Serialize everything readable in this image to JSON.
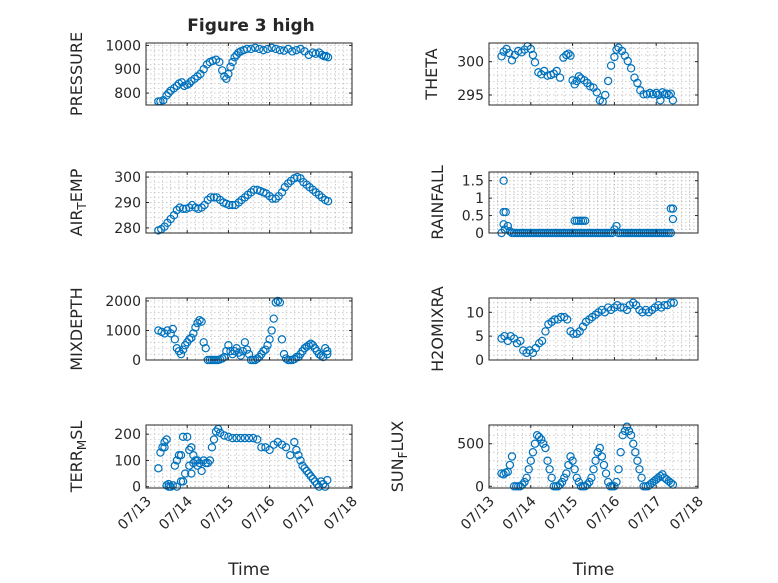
{
  "figure": {
    "title": "Figure 3 high"
  },
  "chart_data": [
    {
      "id": "pressure",
      "type": "scatter",
      "ylabel": "PRESSURE",
      "xlim": [
        0,
        5
      ],
      "ylim": [
        750,
        1010
      ],
      "yticks": [
        800,
        900,
        1000
      ],
      "xticks": [
        0,
        1,
        2,
        3,
        4,
        5
      ],
      "xticklabels": [],
      "xlabel": "",
      "grid": true,
      "title_ref": "figure.title",
      "x": [
        0.3,
        0.35,
        0.42,
        0.5,
        0.55,
        0.6,
        0.68,
        0.75,
        0.8,
        0.87,
        0.93,
        1.0,
        1.05,
        1.1,
        1.18,
        1.25,
        1.32,
        1.4,
        1.48,
        1.55,
        1.62,
        1.7,
        1.78,
        1.85,
        1.9,
        1.95,
        2.0,
        2.05,
        2.1,
        2.15,
        2.2,
        2.25,
        2.3,
        2.37,
        2.45,
        2.55,
        2.65,
        2.75,
        2.85,
        2.95,
        3.05,
        3.15,
        3.25,
        3.35,
        3.45,
        3.55,
        3.65,
        3.75,
        3.85,
        3.95,
        4.05,
        4.12,
        4.2,
        4.27,
        4.32,
        4.37,
        4.42
      ],
      "y": [
        765,
        765,
        770,
        790,
        800,
        810,
        820,
        830,
        840,
        845,
        830,
        835,
        840,
        850,
        860,
        870,
        880,
        900,
        920,
        930,
        935,
        940,
        930,
        895,
        870,
        860,
        880,
        910,
        930,
        950,
        960,
        970,
        975,
        980,
        985,
        985,
        990,
        985,
        980,
        985,
        990,
        985,
        980,
        978,
        985,
        975,
        980,
        985,
        975,
        960,
        970,
        965,
        970,
        960,
        955,
        955,
        950
      ]
    },
    {
      "id": "theta",
      "type": "scatter",
      "ylabel": "THETA",
      "xlim": [
        0,
        5
      ],
      "ylim": [
        293.5,
        302.8
      ],
      "yticks": [
        295,
        300
      ],
      "xticks": [
        0,
        1,
        2,
        3,
        4,
        5
      ],
      "xticklabels": [],
      "xlabel": "",
      "grid": true,
      "x": [
        0.3,
        0.35,
        0.42,
        0.48,
        0.55,
        0.62,
        0.7,
        0.78,
        0.85,
        0.92,
        1.0,
        1.05,
        1.1,
        1.18,
        1.25,
        1.32,
        1.4,
        1.48,
        1.55,
        1.62,
        1.7,
        1.78,
        1.85,
        1.9,
        1.95,
        2.0,
        2.05,
        2.1,
        2.15,
        2.2,
        2.28,
        2.35,
        2.42,
        2.5,
        2.58,
        2.65,
        2.72,
        2.78,
        2.85,
        2.92,
        3.0,
        3.05,
        3.1,
        3.18,
        3.25,
        3.32,
        3.4,
        3.48,
        3.55,
        3.62,
        3.7,
        3.78,
        3.85,
        3.92,
        4.0,
        4.05,
        4.1,
        4.15,
        4.2,
        4.25,
        4.3,
        4.35,
        4.4
      ],
      "y": [
        300.8,
        301.5,
        301.9,
        301.3,
        300.2,
        301.0,
        301.6,
        301.4,
        301.8,
        302.3,
        301.9,
        301.0,
        299.9,
        298.4,
        298.1,
        298.6,
        297.9,
        298.0,
        298.2,
        298.6,
        297.6,
        300.6,
        301.0,
        301.2,
        300.9,
        297.2,
        296.6,
        297.1,
        297.8,
        297.5,
        297.2,
        296.8,
        296.3,
        296.1,
        295.4,
        294.2,
        294.0,
        295.0,
        297.1,
        299.4,
        300.7,
        301.8,
        302.1,
        301.6,
        300.9,
        300.1,
        299.0,
        297.6,
        296.8,
        295.7,
        295.1,
        295.1,
        295.3,
        295.1,
        295.3,
        295.0,
        294.2,
        295.4,
        295.1,
        295.2,
        295.0,
        295.2,
        294.2
      ]
    },
    {
      "id": "air_temp",
      "type": "scatter",
      "ylabel": "AIR_TEMP",
      "ylabel_parts": [
        "AIR",
        "T",
        "EMP"
      ],
      "xlim": [
        0,
        5
      ],
      "ylim": [
        278,
        302
      ],
      "yticks": [
        280,
        290,
        300
      ],
      "xticks": [
        0,
        1,
        2,
        3,
        4,
        5
      ],
      "xticklabels": [],
      "xlabel": "",
      "grid": true,
      "x": [
        0.3,
        0.37,
        0.45,
        0.52,
        0.6,
        0.68,
        0.75,
        0.82,
        0.9,
        0.97,
        1.05,
        1.12,
        1.2,
        1.27,
        1.35,
        1.42,
        1.5,
        1.57,
        1.65,
        1.72,
        1.8,
        1.88,
        1.95,
        2.02,
        2.1,
        2.17,
        2.25,
        2.32,
        2.4,
        2.47,
        2.55,
        2.62,
        2.7,
        2.77,
        2.85,
        2.92,
        3.0,
        3.07,
        3.15,
        3.22,
        3.3,
        3.37,
        3.45,
        3.52,
        3.6,
        3.67,
        3.75,
        3.82,
        3.9,
        3.97,
        4.05,
        4.12,
        4.2,
        4.27,
        4.35,
        4.42
      ],
      "y": [
        279,
        279.5,
        280.5,
        282,
        283.5,
        285,
        287,
        288,
        287.5,
        287.5,
        288,
        289,
        288,
        287.5,
        288,
        289,
        291,
        292,
        292,
        292,
        291,
        290,
        289.5,
        289,
        289,
        289,
        290,
        291,
        292,
        293,
        294,
        295,
        295,
        294.5,
        294,
        293.5,
        292.5,
        291.5,
        291.5,
        292.5,
        294,
        296,
        297.5,
        298.5,
        299.5,
        300,
        299.5,
        298,
        297,
        296,
        295,
        294,
        293,
        292,
        291,
        290.5
      ]
    },
    {
      "id": "rainfall",
      "type": "scatter",
      "ylabel": "RAINFALL",
      "xlim": [
        0,
        5
      ],
      "ylim": [
        0,
        1.75
      ],
      "yticks": [
        0,
        0.5,
        1,
        1.5
      ],
      "yticklabels": [
        "0",
        "0.5",
        "1",
        "1.5"
      ],
      "xticks": [
        0,
        1,
        2,
        3,
        4,
        5
      ],
      "xticklabels": [],
      "xlabel": "",
      "grid": true,
      "x": [
        0.3,
        0.35,
        0.4,
        0.45,
        0.5,
        0.55,
        0.6,
        0.65,
        0.7,
        0.75,
        0.8,
        0.85,
        0.9,
        0.95,
        1.0,
        1.05,
        1.1,
        1.15,
        1.2,
        1.25,
        1.3,
        1.35,
        1.4,
        1.45,
        1.5,
        1.55,
        1.6,
        1.65,
        1.7,
        1.75,
        1.8,
        1.85,
        1.9,
        1.95,
        2.0,
        2.05,
        2.1,
        2.15,
        2.2,
        2.25,
        2.3,
        2.35,
        2.4,
        2.45,
        2.5,
        2.55,
        2.6,
        2.65,
        2.7,
        2.75,
        2.8,
        2.85,
        2.9,
        2.95,
        3.0,
        3.05,
        3.1,
        3.15,
        3.2,
        3.25,
        3.3,
        3.35,
        3.4,
        3.45,
        3.5,
        3.55,
        3.6,
        3.65,
        3.7,
        3.75,
        3.8,
        3.85,
        3.9,
        3.95,
        4.0,
        4.05,
        4.1,
        4.15,
        4.2,
        4.25,
        4.3,
        4.35,
        4.4,
        4.35,
        4.4,
        0.35,
        0.35,
        0.38,
        2.05,
        2.1,
        2.15,
        2.2,
        2.25,
        2.3
      ],
      "y": [
        0,
        1.5,
        0.6,
        0.2,
        0.05,
        0,
        0,
        0,
        0,
        0,
        0,
        0,
        0,
        0,
        0,
        0,
        0,
        0,
        0,
        0,
        0,
        0,
        0,
        0,
        0,
        0,
        0,
        0,
        0,
        0,
        0,
        0,
        0,
        0,
        0,
        0,
        0,
        0,
        0,
        0,
        0,
        0,
        0,
        0,
        0,
        0,
        0,
        0,
        0,
        0,
        0,
        0,
        0,
        0,
        0.1,
        0.2,
        0,
        0,
        0,
        0,
        0,
        0,
        0,
        0,
        0,
        0,
        0,
        0,
        0,
        0,
        0,
        0,
        0,
        0,
        0,
        0,
        0,
        0,
        0,
        0,
        0,
        0,
        0.4,
        0.7,
        0.7,
        0.6,
        0.25,
        0.1,
        0.35,
        0.35,
        0.35,
        0.35,
        0.35,
        0.35
      ]
    },
    {
      "id": "mixdepth",
      "type": "scatter",
      "ylabel": "MIXDEPTH",
      "xlim": [
        0,
        5
      ],
      "ylim": [
        0,
        2100
      ],
      "yticks": [
        0,
        1000,
        2000
      ],
      "xticks": [
        0,
        1,
        2,
        3,
        4,
        5
      ],
      "xticklabels": [],
      "xlabel": "",
      "grid": true,
      "x": [
        0.3,
        0.38,
        0.45,
        0.52,
        0.6,
        0.65,
        0.7,
        0.75,
        0.8,
        0.85,
        0.9,
        0.95,
        1.0,
        1.05,
        1.1,
        1.15,
        1.2,
        1.25,
        1.3,
        1.35,
        1.4,
        1.45,
        1.5,
        1.55,
        1.6,
        1.65,
        1.7,
        1.75,
        1.8,
        1.85,
        1.9,
        1.95,
        2.0,
        2.05,
        2.1,
        2.15,
        2.2,
        2.25,
        2.3,
        2.35,
        2.4,
        2.45,
        2.5,
        2.55,
        2.6,
        2.65,
        2.7,
        2.75,
        2.8,
        2.85,
        2.9,
        2.95,
        3.0,
        3.05,
        3.1,
        3.15,
        3.2,
        3.25,
        3.3,
        3.35,
        3.4,
        3.45,
        3.5,
        3.55,
        3.6,
        3.65,
        3.7,
        3.75,
        3.8,
        3.85,
        3.9,
        3.95,
        4.0,
        4.05,
        4.1,
        4.15,
        4.2,
        4.25,
        4.3,
        4.35,
        4.4,
        4.4
      ],
      "y": [
        1000,
        950,
        900,
        1000,
        900,
        1050,
        700,
        400,
        300,
        200,
        350,
        500,
        600,
        700,
        750,
        900,
        1100,
        1250,
        1350,
        1300,
        600,
        400,
        0,
        0,
        0,
        0,
        0,
        0,
        20,
        50,
        100,
        300,
        500,
        300,
        200,
        300,
        400,
        250,
        150,
        300,
        600,
        350,
        200,
        0,
        0,
        0,
        50,
        100,
        200,
        300,
        350,
        500,
        700,
        1000,
        1400,
        1950,
        2000,
        1950,
        700,
        200,
        50,
        0,
        0,
        0,
        30,
        100,
        100,
        200,
        300,
        400,
        450,
        500,
        550,
        500,
        400,
        300,
        200,
        150,
        100,
        400,
        300,
        200
      ]
    },
    {
      "id": "h2omixra",
      "type": "scatter",
      "ylabel": "H2OMIXRA",
      "xlim": [
        0,
        5
      ],
      "ylim": [
        0,
        13
      ],
      "yticks": [
        0,
        5,
        10
      ],
      "xticks": [
        0,
        1,
        2,
        3,
        4,
        5
      ],
      "xticklabels": [],
      "xlabel": "",
      "grid": true,
      "x": [
        0.3,
        0.37,
        0.45,
        0.52,
        0.6,
        0.67,
        0.75,
        0.82,
        0.9,
        0.97,
        1.05,
        1.12,
        1.2,
        1.27,
        1.35,
        1.42,
        1.5,
        1.57,
        1.65,
        1.72,
        1.8,
        1.87,
        1.95,
        2.02,
        2.1,
        2.17,
        2.25,
        2.32,
        2.4,
        2.47,
        2.55,
        2.62,
        2.7,
        2.77,
        2.85,
        2.92,
        3.0,
        3.07,
        3.15,
        3.22,
        3.3,
        3.37,
        3.45,
        3.52,
        3.6,
        3.67,
        3.75,
        3.82,
        3.9,
        3.97,
        4.05,
        4.12,
        4.2,
        4.27,
        4.35,
        4.42
      ],
      "y": [
        4.5,
        5,
        4,
        5,
        4.5,
        3.5,
        4,
        2,
        1.5,
        2,
        1.5,
        2.5,
        3.5,
        4,
        6,
        7.5,
        8,
        8.5,
        8.5,
        9,
        9,
        8.5,
        6,
        5.5,
        5.5,
        6,
        7,
        8,
        8.5,
        9,
        9.5,
        10,
        10.5,
        10,
        11,
        10.5,
        11,
        11.5,
        11,
        11,
        10.5,
        11.5,
        12,
        11.5,
        10.5,
        10,
        10.5,
        10,
        10.5,
        11,
        11.5,
        11,
        11.5,
        11.5,
        12,
        12
      ]
    },
    {
      "id": "terr_msl",
      "type": "scatter",
      "ylabel": "TERR_MSL",
      "ylabel_parts": [
        "TERR",
        "M",
        "SL"
      ],
      "xlim": [
        0,
        5
      ],
      "ylim": [
        -5,
        235
      ],
      "yticks": [
        0,
        100,
        200
      ],
      "xticks": [
        0,
        1,
        2,
        3,
        4,
        5
      ],
      "xticklabels": [
        "07/13",
        "07/14",
        "07/15",
        "07/16",
        "07/17",
        "07/18"
      ],
      "xlabel": "Time",
      "grid": true,
      "x": [
        0.3,
        0.35,
        0.4,
        0.45,
        0.5,
        0.55,
        0.6,
        0.65,
        0.7,
        0.75,
        0.8,
        0.85,
        0.9,
        0.95,
        1.0,
        1.05,
        1.1,
        1.15,
        1.2,
        1.25,
        1.3,
        1.35,
        1.4,
        1.45,
        1.5,
        1.55,
        1.6,
        1.65,
        1.7,
        1.75,
        1.8,
        1.9,
        2.0,
        2.1,
        2.2,
        2.3,
        2.4,
        2.5,
        2.6,
        2.7,
        2.8,
        2.9,
        3.0,
        3.1,
        3.2,
        3.3,
        3.4,
        3.5,
        3.6,
        3.65,
        3.7,
        3.75,
        3.8,
        3.85,
        3.9,
        3.95,
        4.0,
        4.05,
        4.1,
        4.15,
        4.2,
        4.25,
        4.3,
        4.35,
        4.4,
        0.45,
        0.5,
        0.55,
        0.75,
        0.85,
        0.9,
        1.05,
        1.1,
        1.15,
        1.25
      ],
      "y": [
        70,
        130,
        150,
        170,
        180,
        10,
        0,
        5,
        80,
        100,
        120,
        20,
        20,
        50,
        190,
        140,
        150,
        120,
        100,
        80,
        90,
        60,
        100,
        90,
        90,
        100,
        150,
        180,
        210,
        220,
        205,
        195,
        190,
        185,
        185,
        185,
        185,
        185,
        185,
        180,
        150,
        150,
        140,
        160,
        170,
        160,
        150,
        120,
        170,
        140,
        120,
        100,
        80,
        70,
        60,
        50,
        40,
        30,
        20,
        10,
        0,
        20,
        10,
        0,
        25,
        150,
        5,
        0,
        0,
        120,
        190,
        80,
        50,
        90,
        100
      ]
    },
    {
      "id": "sun_flux",
      "type": "scatter",
      "ylabel": "SUN_FLUX",
      "ylabel_parts": [
        "SUN",
        "F",
        "LUX"
      ],
      "xlim": [
        0,
        5
      ],
      "ylim": [
        -20,
        720
      ],
      "yticks": [
        0,
        500
      ],
      "xticks": [
        0,
        1,
        2,
        3,
        4,
        5
      ],
      "xticklabels": [
        "07/13",
        "07/14",
        "07/15",
        "07/16",
        "07/17",
        "07/18"
      ],
      "xlabel": "Time",
      "grid": true,
      "x": [
        0.3,
        0.35,
        0.4,
        0.45,
        0.5,
        0.55,
        0.6,
        0.65,
        0.7,
        0.75,
        0.8,
        0.85,
        0.9,
        0.95,
        1.0,
        1.05,
        1.1,
        1.15,
        1.2,
        1.25,
        1.3,
        1.35,
        1.4,
        1.45,
        1.5,
        1.55,
        1.6,
        1.65,
        1.7,
        1.75,
        1.8,
        1.85,
        1.9,
        1.95,
        2.0,
        2.05,
        2.1,
        2.15,
        2.2,
        2.25,
        2.3,
        2.35,
        2.4,
        2.45,
        2.5,
        2.55,
        2.6,
        2.65,
        2.7,
        2.75,
        2.8,
        2.85,
        2.9,
        2.95,
        3.0,
        3.05,
        3.1,
        3.15,
        3.2,
        3.25,
        3.3,
        3.35,
        3.4,
        3.45,
        3.5,
        3.55,
        3.6,
        3.65,
        3.7,
        3.75,
        3.8,
        3.85,
        3.9,
        3.95,
        4.0,
        4.05,
        4.1,
        4.15,
        4.2,
        4.25,
        4.3,
        4.35,
        4.4
      ],
      "y": [
        150,
        140,
        160,
        170,
        250,
        350,
        0,
        0,
        0,
        0,
        20,
        50,
        100,
        200,
        300,
        400,
        500,
        600,
        580,
        550,
        500,
        450,
        300,
        200,
        100,
        0,
        0,
        0,
        20,
        50,
        100,
        150,
        250,
        350,
        300,
        200,
        100,
        50,
        0,
        0,
        0,
        20,
        50,
        100,
        200,
        300,
        400,
        450,
        350,
        250,
        150,
        50,
        0,
        0,
        0,
        50,
        200,
        400,
        600,
        650,
        700,
        650,
        600,
        500,
        400,
        300,
        200,
        100,
        0,
        0,
        0,
        20,
        40,
        60,
        80,
        100,
        120,
        140,
        100,
        80,
        60,
        40,
        20
      ]
    }
  ]
}
